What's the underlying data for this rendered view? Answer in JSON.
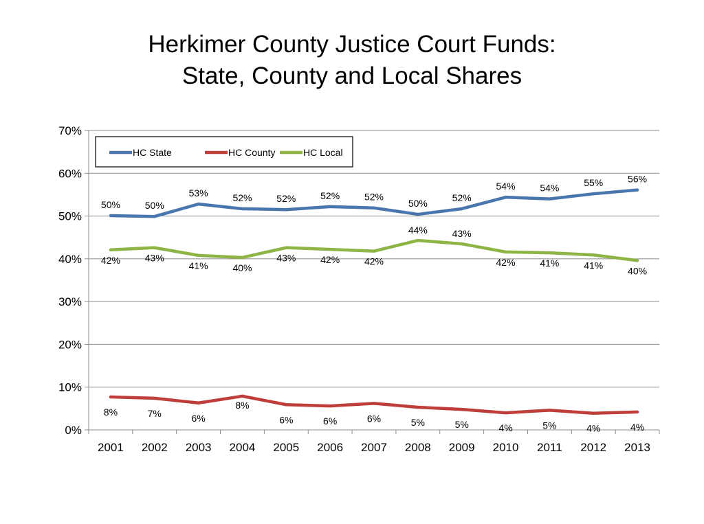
{
  "chart_data": {
    "type": "line",
    "title": "Herkimer County Justice Court Funds:",
    "subtitle": "State, County and Local Shares",
    "xlabel": "",
    "ylabel": "",
    "categories": [
      "2001",
      "2002",
      "2003",
      "2004",
      "2005",
      "2006",
      "2007",
      "2008",
      "2009",
      "2010",
      "2011",
      "2012",
      "2013"
    ],
    "ylim": [
      0,
      70
    ],
    "yticks": [
      "0%",
      "10%",
      "20%",
      "30%",
      "40%",
      "50%",
      "60%",
      "70%"
    ],
    "grid": true,
    "legend_position": "top-left",
    "series": [
      {
        "name": "HC State",
        "color": "#4a76ae",
        "values": [
          50.1,
          49.9,
          52.8,
          51.7,
          51.5,
          52.2,
          51.9,
          50.4,
          51.7,
          54.4,
          54.0,
          55.2,
          56.1
        ],
        "labels": [
          "50%",
          "50%",
          "53%",
          "52%",
          "52%",
          "52%",
          "52%",
          "50%",
          "52%",
          "54%",
          "54%",
          "55%",
          "56%"
        ]
      },
      {
        "name": "HC County",
        "color": "#bf3e3a",
        "values": [
          7.7,
          7.4,
          6.3,
          7.9,
          5.9,
          5.6,
          6.2,
          5.3,
          4.8,
          4.0,
          4.6,
          3.9,
          4.2
        ],
        "labels": [
          "8%",
          "7%",
          "6%",
          "8%",
          "6%",
          "6%",
          "6%",
          "5%",
          "5%",
          "4%",
          "5%",
          "4%",
          "4%"
        ]
      },
      {
        "name": "HC Local",
        "color": "#8eb446",
        "values": [
          42.1,
          42.6,
          40.8,
          40.3,
          42.6,
          42.2,
          41.8,
          44.3,
          43.5,
          41.6,
          41.4,
          40.9,
          39.6
        ],
        "labels": [
          "42%",
          "43%",
          "41%",
          "40%",
          "43%",
          "42%",
          "42%",
          "44%",
          "43%",
          "42%",
          "41%",
          "41%",
          "40%"
        ]
      }
    ]
  }
}
